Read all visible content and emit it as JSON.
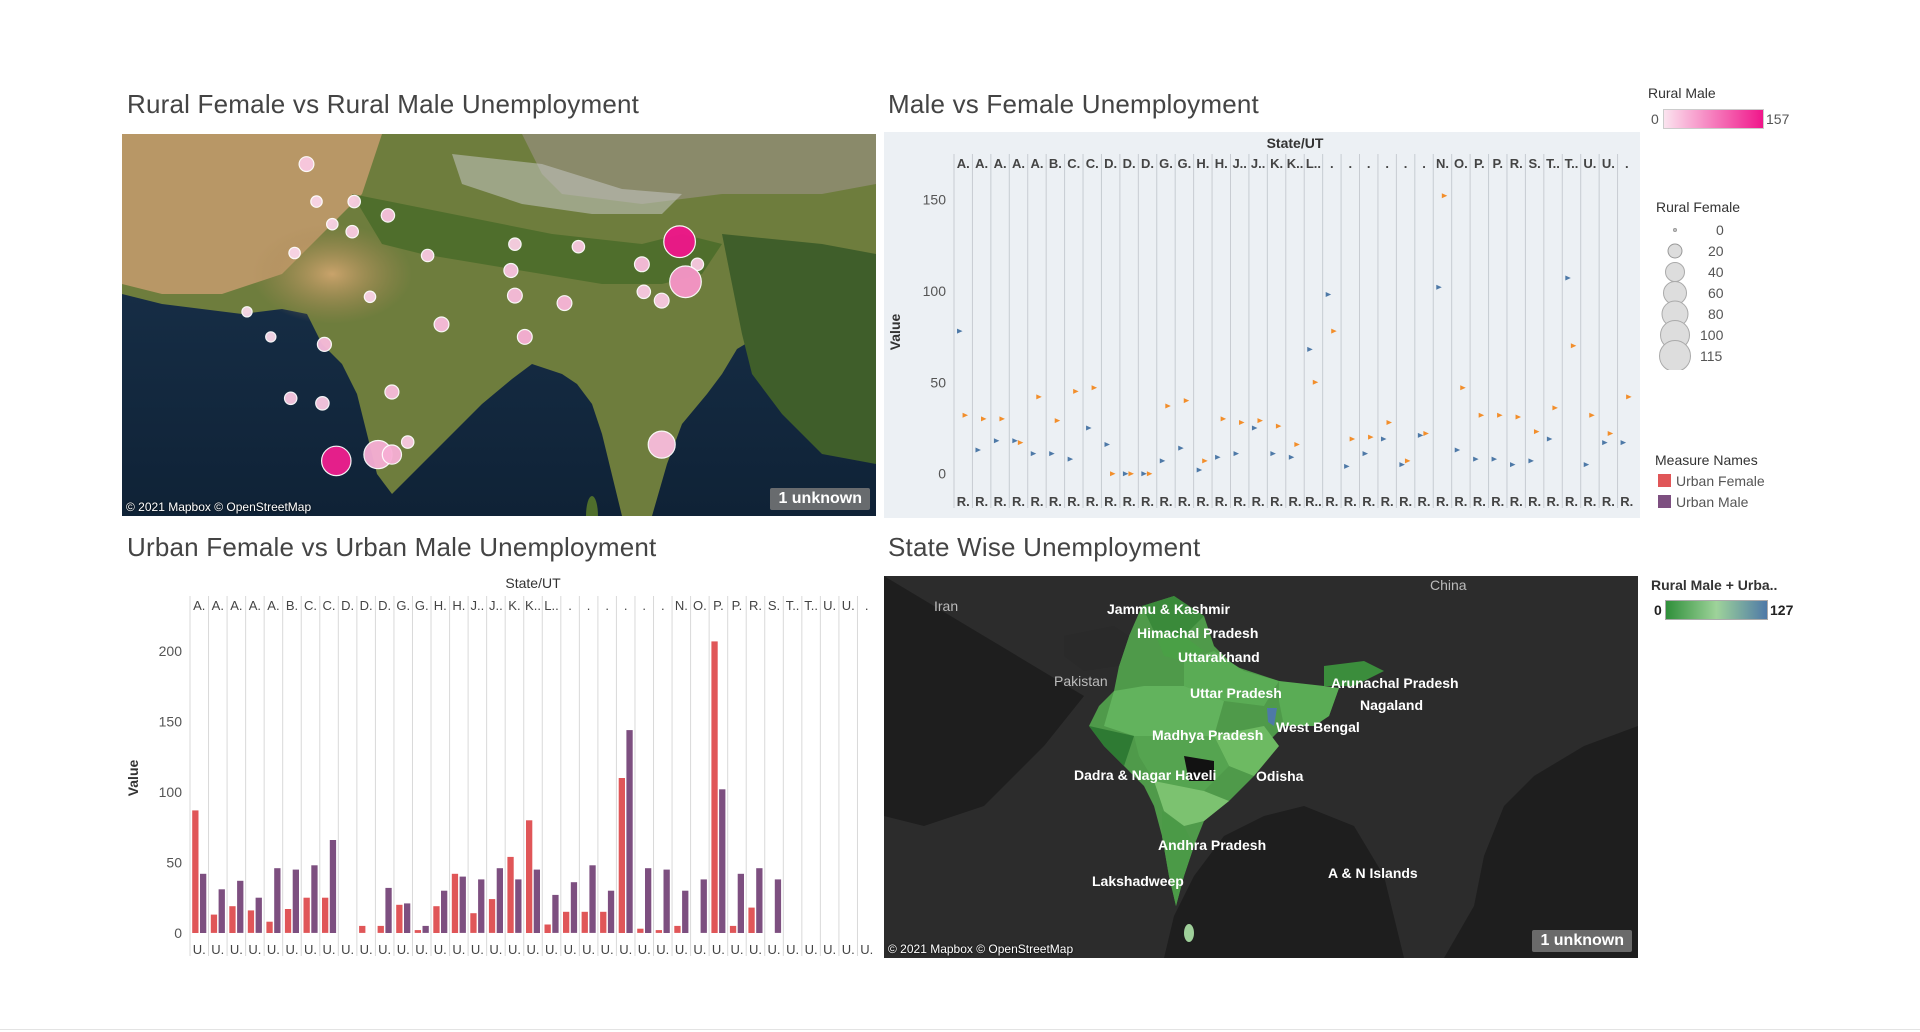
{
  "titles": {
    "rural": "Rural Female vs Rural Male Unemployment",
    "mvf": "Male vs Female Unemployment",
    "urban": "Urban Female vs Urban Male Unemployment",
    "state": "State Wise Unemployment"
  },
  "map_credit": "© 2021 Mapbox © OpenStreetMap",
  "unknown_badge": "1 unknown",
  "legends": {
    "rural_male": {
      "title": "Rural Male",
      "min": "0",
      "max": "157",
      "color_low": "#fbe3ef",
      "color_high": "#f0168a"
    },
    "rural_female": {
      "title": "Rural Female",
      "sizes": [
        "0",
        "20",
        "40",
        "60",
        "80",
        "100",
        "115"
      ]
    },
    "measure_names": {
      "title": "Measure Names",
      "items": [
        {
          "label": "Urban Female",
          "color": "#e05658"
        },
        {
          "label": "Urban Male",
          "color": "#7d4f80"
        }
      ]
    },
    "state": {
      "title": "Rural Male + Urba..",
      "min": "0",
      "max": "127"
    }
  },
  "map1": {
    "background": "satellite",
    "bubbles": [
      {
        "lon": 74.8,
        "lat": 34.1,
        "rural_female": 6,
        "rural_male": 20
      },
      {
        "lon": 77.2,
        "lat": 31.1,
        "rural_female": 3,
        "rural_male": 15
      },
      {
        "lon": 75.3,
        "lat": 31.1,
        "rural_female": 2,
        "rural_male": 10
      },
      {
        "lon": 78.9,
        "lat": 30.0,
        "rural_female": 4,
        "rural_male": 25
      },
      {
        "lon": 77.1,
        "lat": 28.7,
        "rural_female": 3,
        "rural_male": 18
      },
      {
        "lon": 76.1,
        "lat": 29.3,
        "rural_female": 2,
        "rural_male": 12
      },
      {
        "lon": 74.2,
        "lat": 27.0,
        "rural_female": 2,
        "rural_male": 10
      },
      {
        "lon": 80.9,
        "lat": 26.8,
        "rural_female": 3,
        "rural_male": 20
      },
      {
        "lon": 85.3,
        "lat": 27.7,
        "rural_female": 3,
        "rural_male": 15
      },
      {
        "lon": 88.5,
        "lat": 27.5,
        "rural_female": 3,
        "rural_male": 20
      },
      {
        "lon": 91.7,
        "lat": 26.1,
        "rural_female": 6,
        "rural_male": 30
      },
      {
        "lon": 93.6,
        "lat": 27.9,
        "rural_female": 60,
        "rural_male": 157
      },
      {
        "lon": 94.5,
        "lat": 26.1,
        "rural_female": 3,
        "rural_male": 20
      },
      {
        "lon": 93.9,
        "lat": 24.7,
        "rural_female": 60,
        "rural_male": 60
      },
      {
        "lon": 92.7,
        "lat": 23.2,
        "rural_female": 6,
        "rural_male": 20
      },
      {
        "lon": 91.8,
        "lat": 23.9,
        "rural_female": 4,
        "rural_male": 20
      },
      {
        "lon": 87.8,
        "lat": 23.0,
        "rural_female": 6,
        "rural_male": 35
      },
      {
        "lon": 85.3,
        "lat": 23.6,
        "rural_female": 6,
        "rural_male": 30
      },
      {
        "lon": 85.1,
        "lat": 25.6,
        "rural_female": 5,
        "rural_male": 25
      },
      {
        "lon": 78.0,
        "lat": 23.5,
        "rural_female": 2,
        "rural_male": 12
      },
      {
        "lon": 81.6,
        "lat": 21.3,
        "rural_female": 6,
        "rural_male": 30
      },
      {
        "lon": 85.8,
        "lat": 20.3,
        "rural_female": 6,
        "rural_male": 40
      },
      {
        "lon": 71.8,
        "lat": 22.3,
        "rural_female": 1,
        "rural_male": 8
      },
      {
        "lon": 73.0,
        "lat": 20.3,
        "rural_female": 1,
        "rural_male": 8
      },
      {
        "lon": 75.7,
        "lat": 19.7,
        "rural_female": 5,
        "rural_male": 30
      },
      {
        "lon": 74.0,
        "lat": 15.4,
        "rural_female": 3,
        "rural_male": 20
      },
      {
        "lon": 75.6,
        "lat": 15.0,
        "rural_female": 4,
        "rural_male": 20
      },
      {
        "lon": 79.1,
        "lat": 15.9,
        "rural_female": 5,
        "rural_male": 30
      },
      {
        "lon": 79.9,
        "lat": 11.9,
        "rural_female": 3,
        "rural_male": 20
      },
      {
        "lon": 76.3,
        "lat": 10.4,
        "rural_female": 50,
        "rural_male": 150
      },
      {
        "lon": 78.4,
        "lat": 10.9,
        "rural_female": 45,
        "rural_male": 40
      },
      {
        "lon": 79.1,
        "lat": 10.9,
        "rural_female": 15,
        "rural_male": 40
      },
      {
        "lon": 92.7,
        "lat": 11.7,
        "rural_female": 40,
        "rural_male": 30
      }
    ]
  },
  "map2": {
    "labels": {
      "countries": [
        "Iran",
        "Pakistan",
        "China"
      ],
      "states": [
        "Jammu & Kashmir",
        "Himachal Pradesh",
        "Uttarakhand",
        "Uttar Pradesh",
        "Arunachal Pradesh",
        "Nagaland",
        "West Bengal",
        "Madhya Pradesh",
        "Dadra & Nagar Haveli",
        "Odisha",
        "Andhra Pradesh",
        "A & N Islands",
        "Lakshadweep"
      ]
    }
  },
  "chart_data": [
    {
      "type": "scatter",
      "title": "Male vs Female Unemployment",
      "header": "State/UT",
      "ylabel": "Value",
      "ylim": [
        -10,
        165
      ],
      "yticks": [
        0,
        50,
        100,
        150
      ],
      "top_labels": [
        "A.",
        "A.",
        "A.",
        "A.",
        "A.",
        "B.",
        "C.",
        "C.",
        "D.",
        "D.",
        "D.",
        "G.",
        "G.",
        "H.",
        "H.",
        "J..",
        "J..",
        "K.",
        "K..",
        "L..",
        ".",
        ".",
        ".",
        ".",
        ".",
        ".",
        "N.",
        "O.",
        "P.",
        "P.",
        "R.",
        "S.",
        "T..",
        "T..",
        "U.",
        "U.",
        "."
      ],
      "bottom_labels": [
        "R.",
        "R.",
        "R.",
        "R.",
        "R.",
        "R.",
        "R.",
        "R.",
        "R.",
        "R.",
        "R.",
        "R.",
        "R.",
        "R.",
        "R.",
        "R.",
        "R.",
        "R.",
        "R.",
        "R..",
        "R.",
        "R.",
        "R.",
        "R.",
        "R.",
        "R.",
        "R.",
        "R.",
        "R.",
        "R.",
        "R.",
        "R.",
        "R.",
        "R.",
        "R.",
        "R.",
        "R."
      ],
      "series": [
        {
          "name": "Rural Female",
          "color": "#4e79a7",
          "values": [
            78,
            13,
            18,
            18,
            11,
            11,
            8,
            25,
            16,
            0,
            0,
            7,
            14,
            2,
            9,
            11,
            25,
            11,
            9,
            68,
            98,
            4,
            11,
            19,
            5,
            21,
            102,
            13,
            8,
            8,
            5,
            7,
            19,
            107,
            5,
            17,
            17
          ]
        },
        {
          "name": "Rural Male",
          "color": "#f28e2b",
          "values": [
            32,
            30,
            30,
            17,
            42,
            29,
            45,
            47,
            0,
            0,
            0,
            37,
            40,
            7,
            30,
            28,
            29,
            26,
            16,
            50,
            78,
            19,
            20,
            28,
            7,
            22,
            152,
            47,
            32,
            32,
            31,
            23,
            36,
            70,
            32,
            22,
            42
          ]
        }
      ]
    },
    {
      "type": "bar",
      "title": "Urban Female vs Urban Male Unemployment",
      "header": "State/UT",
      "ylabel": "Value",
      "ylim": [
        -5,
        225
      ],
      "yticks": [
        0,
        50,
        100,
        150,
        200
      ],
      "top_labels": [
        "A.",
        "A.",
        "A.",
        "A.",
        "A.",
        "B.",
        "C.",
        "C.",
        "D.",
        "D.",
        "D.",
        "G.",
        "G.",
        "H.",
        "H.",
        "J..",
        "J..",
        "K.",
        "K..",
        "L..",
        ".",
        ".",
        ".",
        ".",
        ".",
        ".",
        "N.",
        "O.",
        "P.",
        "P.",
        "R.",
        "S.",
        "T..",
        "T..",
        "U.",
        "U.",
        "."
      ],
      "bottom_labels": [
        "U.",
        "U.",
        "U.",
        "U.",
        "U.",
        "U.",
        "U.",
        "U.",
        "U.",
        "U.",
        "U.",
        "U.",
        "U.",
        "U.",
        "U.",
        "U.",
        "U.",
        "U.",
        "U.",
        "U.",
        "U.",
        "U.",
        "U.",
        "U.",
        "U.",
        "U.",
        "U.",
        "U.",
        "U.",
        "U.",
        "U.",
        "U.",
        "U.",
        "U.",
        "U.",
        "U.",
        "U."
      ],
      "series": [
        {
          "name": "Urban Female",
          "color": "#e05658",
          "values": [
            87,
            13,
            19,
            16,
            8,
            17,
            25,
            25,
            0,
            5,
            5,
            20,
            2,
            19,
            42,
            14,
            24,
            54,
            80,
            6,
            15,
            15,
            15,
            110,
            3,
            2,
            5,
            0,
            207,
            5,
            18,
            0,
            0,
            0,
            0,
            0,
            0
          ]
        },
        {
          "name": "Urban Male",
          "color": "#7d4f80",
          "values": [
            42,
            31,
            37,
            25,
            46,
            45,
            48,
            66,
            0,
            0,
            32,
            21,
            5,
            30,
            40,
            38,
            46,
            38,
            45,
            27,
            36,
            48,
            30,
            144,
            46,
            45,
            30,
            38,
            102,
            42,
            46,
            38,
            0,
            0,
            0,
            0,
            0
          ]
        }
      ]
    }
  ]
}
